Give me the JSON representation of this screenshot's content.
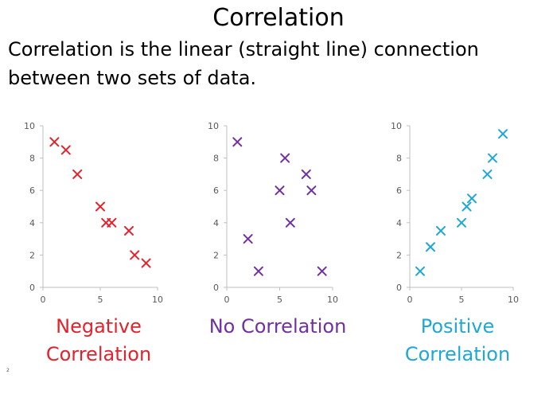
{
  "slide": {
    "title": "Correlation",
    "subtitle": "Correlation is the linear (straight line) connection between two sets of data.",
    "slide_number": "2"
  },
  "chart_data": [
    {
      "type": "scatter",
      "title": "",
      "caption_lines": [
        "Negative",
        "Correlation"
      ],
      "color": "#e3222c",
      "marker": "x",
      "xlim": [
        0,
        10
      ],
      "ylim": [
        0,
        10
      ],
      "xticks": [
        0,
        5,
        10
      ],
      "yticks": [
        0,
        2,
        4,
        6,
        8,
        10
      ],
      "grid": false,
      "points": [
        {
          "x": 1,
          "y": 9
        },
        {
          "x": 2,
          "y": 8.5
        },
        {
          "x": 3,
          "y": 7
        },
        {
          "x": 5,
          "y": 5
        },
        {
          "x": 5.5,
          "y": 4
        },
        {
          "x": 6,
          "y": 4
        },
        {
          "x": 7.5,
          "y": 3.5
        },
        {
          "x": 8,
          "y": 2
        },
        {
          "x": 9,
          "y": 1.5
        }
      ]
    },
    {
      "type": "scatter",
      "title": "",
      "caption_lines": [
        "No Correlation"
      ],
      "color": "#7030a0",
      "marker": "x",
      "xlim": [
        0,
        10
      ],
      "ylim": [
        0,
        10
      ],
      "xticks": [
        0,
        5,
        10
      ],
      "yticks": [
        0,
        2,
        4,
        6,
        8,
        10
      ],
      "grid": false,
      "points": [
        {
          "x": 1,
          "y": 9
        },
        {
          "x": 2,
          "y": 3
        },
        {
          "x": 3,
          "y": 1
        },
        {
          "x": 5,
          "y": 6
        },
        {
          "x": 5.5,
          "y": 8
        },
        {
          "x": 6,
          "y": 4
        },
        {
          "x": 7.5,
          "y": 7
        },
        {
          "x": 8,
          "y": 6
        },
        {
          "x": 9,
          "y": 1
        }
      ]
    },
    {
      "type": "scatter",
      "title": "",
      "caption_lines": [
        "Positive",
        "Correlation"
      ],
      "color": "#1fa8d4",
      "marker": "x",
      "xlim": [
        0,
        10
      ],
      "ylim": [
        0,
        10
      ],
      "xticks": [
        0,
        5,
        10
      ],
      "yticks": [
        0,
        2,
        4,
        6,
        8,
        10
      ],
      "grid": false,
      "points": [
        {
          "x": 1,
          "y": 1
        },
        {
          "x": 2,
          "y": 2.5
        },
        {
          "x": 3,
          "y": 3.5
        },
        {
          "x": 5,
          "y": 4
        },
        {
          "x": 5.5,
          "y": 5
        },
        {
          "x": 6,
          "y": 5.5
        },
        {
          "x": 7.5,
          "y": 7
        },
        {
          "x": 8,
          "y": 8
        },
        {
          "x": 9,
          "y": 9.5
        }
      ]
    }
  ]
}
